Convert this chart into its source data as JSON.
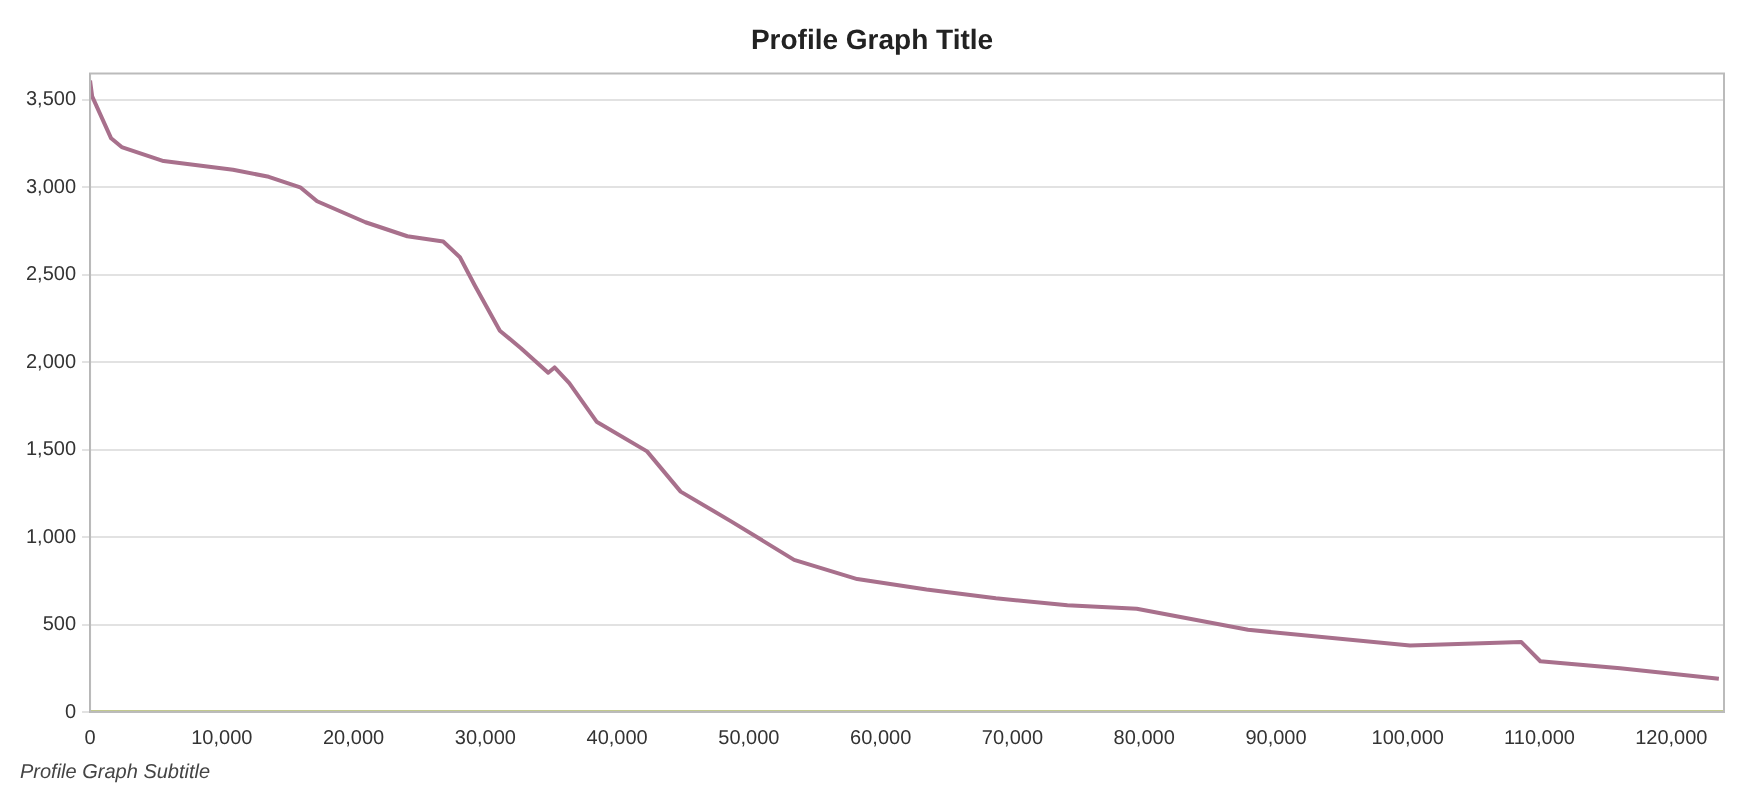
{
  "chart_data": {
    "type": "line",
    "title": "Profile Graph Title",
    "subtitle": "Profile Graph Subtitle",
    "series": [
      {
        "color": "#a8708c",
        "x": [
          0,
          160,
          1600,
          2400,
          5580,
          10850,
          13560,
          15950,
          17230,
          20900,
          24080,
          26800,
          28070,
          29190,
          31100,
          32700,
          34770,
          35250,
          36370,
          38440,
          42270,
          44820,
          48650,
          53430,
          58220,
          63480,
          68740,
          74170,
          79430,
          87880,
          100170,
          108620,
          110060,
          116120,
          123610
        ],
        "values": [
          3610,
          3520,
          3280,
          3230,
          3150,
          3100,
          3060,
          3000,
          2920,
          2800,
          2720,
          2690,
          2600,
          2440,
          2180,
          2080,
          1940,
          1970,
          1880,
          1660,
          1490,
          1260,
          1090,
          870,
          760,
          700,
          650,
          610,
          590,
          470,
          380,
          400,
          290,
          250,
          190
        ]
      },
      {
        "color": "#c2c98e",
        "x": [
          0,
          124000
        ],
        "values": [
          0,
          0
        ]
      }
    ],
    "xlim": [
      0,
      124000
    ],
    "xticks": [
      0,
      {
        "value": 10000,
        "label": "10,000"
      },
      {
        "value": 20000,
        "label": "20,000"
      },
      {
        "value": 30000,
        "label": "30,000"
      },
      {
        "value": 40000,
        "label": "40,000"
      },
      {
        "value": 50000,
        "label": "50,000"
      },
      {
        "value": 60000,
        "label": "60,000"
      },
      {
        "value": 70000,
        "label": "70,000"
      },
      {
        "value": 80000,
        "label": "80,000"
      },
      {
        "value": 90000,
        "label": "90,000"
      },
      {
        "value": 100000,
        "label": "100,000"
      },
      {
        "value": 110000,
        "label": "110,000"
      },
      {
        "value": 120000,
        "label": "120,000"
      }
    ],
    "ylim": [
      0,
      3650
    ],
    "yticks": [
      0,
      500,
      {
        "value": 1000,
        "label": "1,000"
      },
      {
        "value": 1500,
        "label": "1,500"
      },
      {
        "value": 2000,
        "label": "2,000"
      },
      {
        "value": 2500,
        "label": "2,500"
      },
      {
        "value": 3000,
        "label": "3,000"
      },
      {
        "value": 3500,
        "label": "3,500"
      }
    ],
    "grid": "y",
    "legend": false,
    "marker": "none",
    "line_style": "solid"
  }
}
